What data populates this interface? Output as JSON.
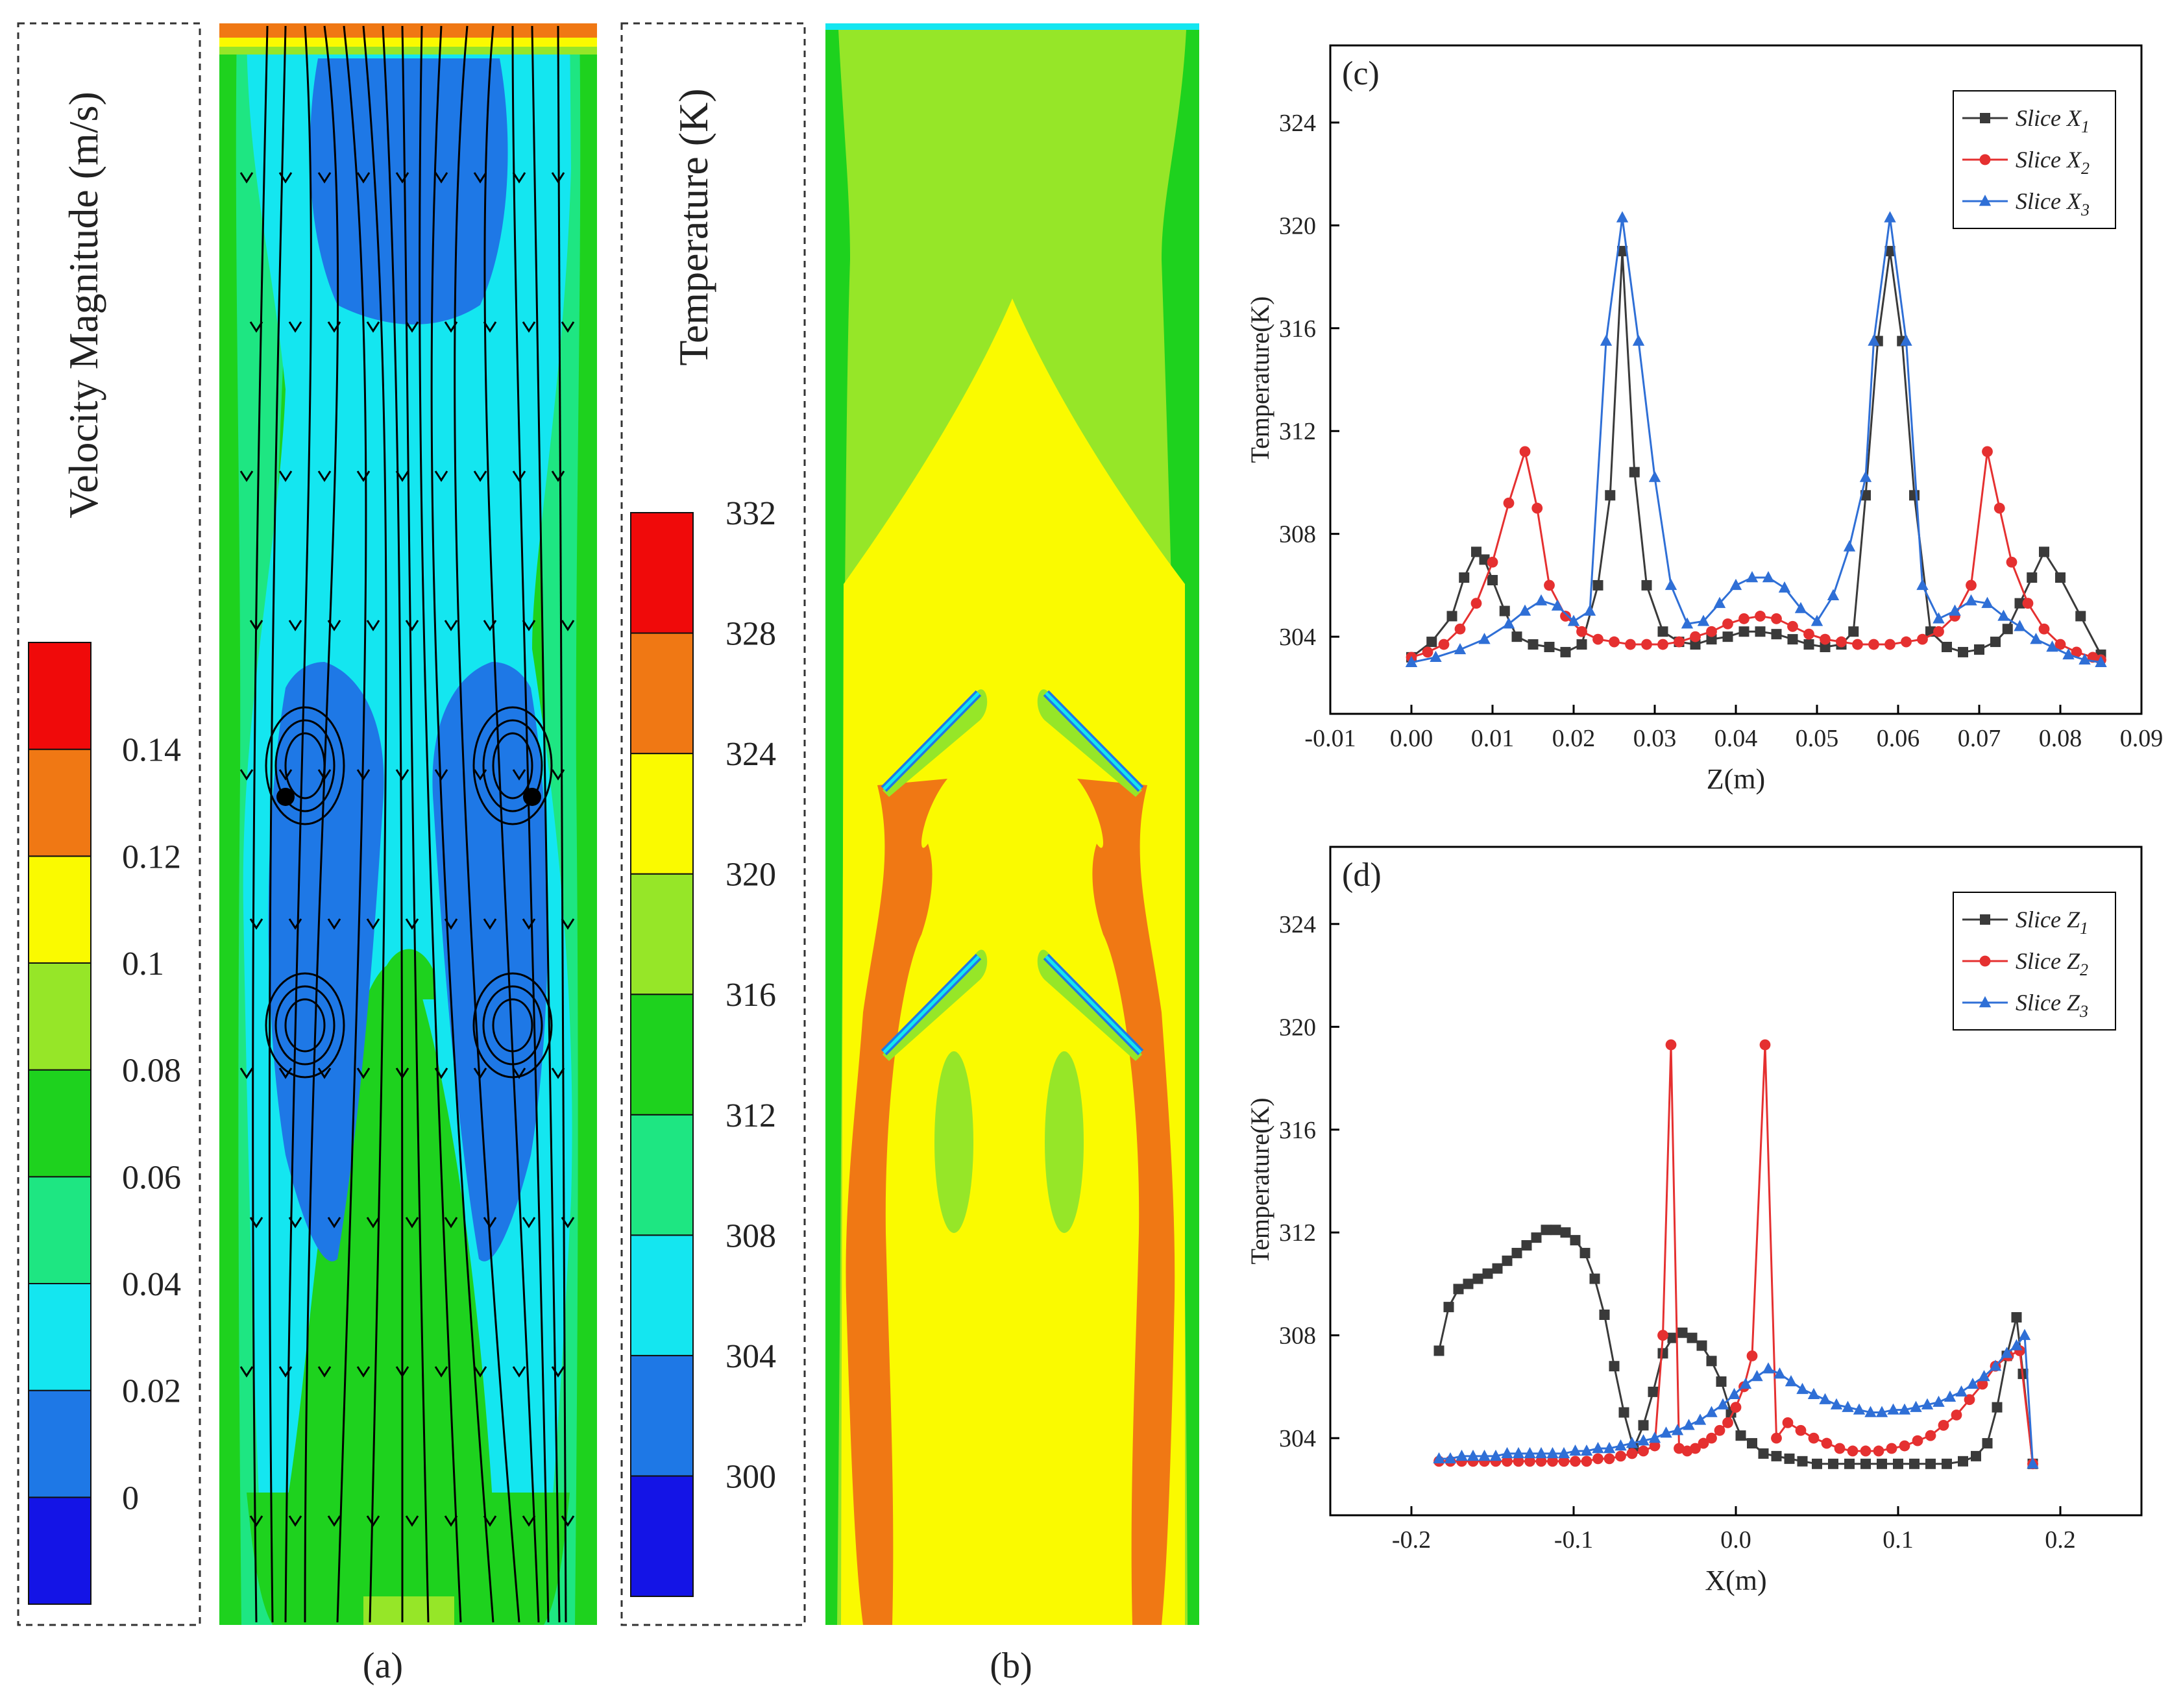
{
  "panel_a": {
    "caption": "(a)",
    "legend_title": "Velocity Magnitude (m/s)",
    "legend_labels": [
      "0",
      "0.02",
      "0.04",
      "0.06",
      "0.08",
      "0.1",
      "0.12",
      "0.14"
    ],
    "legend_colors": [
      "#1414e6",
      "#1e78e6",
      "#14e6f0",
      "#1ee682",
      "#1ed21e",
      "#96e628",
      "#fafa00",
      "#f07814",
      "#f00a0a"
    ]
  },
  "panel_b": {
    "caption": "(b)",
    "legend_title": "Temperature (K)",
    "legend_labels": [
      "300",
      "304",
      "308",
      "312",
      "316",
      "320",
      "324",
      "328",
      "332"
    ],
    "legend_colors": [
      "#1414e6",
      "#1e78e6",
      "#14e6f0",
      "#1ee682",
      "#1ed21e",
      "#96e628",
      "#fafa00",
      "#f07814",
      "#f00a0a"
    ]
  },
  "chart_data": [
    {
      "type": "line",
      "panel_label": "(c)",
      "xlabel": "Z(m)",
      "ylabel": "Temperature(K)",
      "xlim": [
        -0.01,
        0.09
      ],
      "ylim": [
        301,
        327
      ],
      "xticks": [
        "-0.01",
        "0.00",
        "0.01",
        "0.02",
        "0.03",
        "0.04",
        "0.05",
        "0.06",
        "0.07",
        "0.08",
        "0.09"
      ],
      "yticks": [
        "304",
        "308",
        "312",
        "316",
        "320",
        "324"
      ],
      "legend_position": "top-right",
      "series": [
        {
          "name": "Slice X",
          "sub": "1",
          "color": "#3a3a3a",
          "marker": "square",
          "x": [
            0.0,
            0.0025,
            0.005,
            0.0065,
            0.008,
            0.009,
            0.01,
            0.0115,
            0.013,
            0.015,
            0.017,
            0.019,
            0.021,
            0.023,
            0.0245,
            0.026,
            0.0275,
            0.029,
            0.031,
            0.033,
            0.035,
            0.037,
            0.039,
            0.041,
            0.043,
            0.045,
            0.047,
            0.049,
            0.051,
            0.053,
            0.0545,
            0.056,
            0.0575,
            0.059,
            0.0605,
            0.062,
            0.064,
            0.066,
            0.068,
            0.07,
            0.072,
            0.0735,
            0.075,
            0.0765,
            0.078,
            0.08,
            0.0825,
            0.085
          ],
          "y": [
            303.2,
            303.8,
            304.8,
            306.3,
            307.3,
            307.0,
            306.2,
            305.0,
            304.0,
            303.7,
            303.6,
            303.4,
            303.7,
            306.0,
            309.5,
            319.0,
            310.4,
            306.0,
            304.2,
            303.8,
            303.7,
            303.9,
            304.0,
            304.2,
            304.2,
            304.1,
            303.9,
            303.7,
            303.6,
            303.7,
            304.2,
            309.5,
            315.5,
            319.0,
            315.5,
            309.5,
            304.2,
            303.6,
            303.4,
            303.5,
            303.8,
            304.3,
            305.3,
            306.3,
            307.3,
            306.3,
            304.8,
            303.3
          ]
        },
        {
          "name": "Slice X",
          "sub": "2",
          "color": "#e53030",
          "marker": "circle",
          "x": [
            0.0,
            0.002,
            0.004,
            0.006,
            0.008,
            0.01,
            0.012,
            0.014,
            0.0155,
            0.017,
            0.019,
            0.021,
            0.023,
            0.025,
            0.027,
            0.029,
            0.031,
            0.033,
            0.035,
            0.037,
            0.039,
            0.041,
            0.043,
            0.045,
            0.047,
            0.049,
            0.051,
            0.053,
            0.055,
            0.057,
            0.059,
            0.061,
            0.063,
            0.065,
            0.067,
            0.069,
            0.071,
            0.0725,
            0.074,
            0.076,
            0.078,
            0.08,
            0.082,
            0.084,
            0.085
          ],
          "y": [
            303.2,
            303.4,
            303.7,
            304.3,
            305.3,
            306.9,
            309.2,
            311.2,
            309.0,
            306.0,
            304.8,
            304.2,
            303.9,
            303.8,
            303.7,
            303.7,
            303.7,
            303.8,
            304.0,
            304.2,
            304.5,
            304.7,
            304.8,
            304.7,
            304.4,
            304.1,
            303.9,
            303.8,
            303.7,
            303.7,
            303.7,
            303.8,
            303.9,
            304.2,
            304.8,
            306.0,
            311.2,
            309.0,
            306.9,
            305.3,
            304.3,
            303.7,
            303.4,
            303.2,
            303.1
          ]
        },
        {
          "name": "Slice X",
          "sub": "3",
          "color": "#2f6fd6",
          "marker": "triangle",
          "x": [
            0.0,
            0.003,
            0.006,
            0.009,
            0.012,
            0.014,
            0.016,
            0.018,
            0.02,
            0.022,
            0.024,
            0.026,
            0.028,
            0.03,
            0.032,
            0.034,
            0.036,
            0.038,
            0.04,
            0.042,
            0.044,
            0.046,
            0.048,
            0.05,
            0.052,
            0.054,
            0.056,
            0.057,
            0.059,
            0.061,
            0.063,
            0.065,
            0.067,
            0.069,
            0.071,
            0.073,
            0.075,
            0.077,
            0.079,
            0.081,
            0.083,
            0.085
          ],
          "y": [
            303.0,
            303.2,
            303.5,
            303.9,
            304.5,
            305.0,
            305.4,
            305.2,
            304.6,
            305.0,
            315.5,
            320.3,
            315.5,
            310.2,
            306.0,
            304.5,
            304.6,
            305.3,
            306.0,
            306.3,
            306.3,
            305.9,
            305.1,
            304.6,
            305.6,
            307.5,
            310.2,
            315.5,
            320.3,
            315.5,
            306.0,
            304.7,
            305.0,
            305.4,
            305.3,
            304.8,
            304.4,
            303.9,
            303.6,
            303.3,
            303.1,
            303.0
          ]
        }
      ]
    },
    {
      "type": "line",
      "panel_label": "(d)",
      "xlabel": "X(m)",
      "ylabel": "Temperature(K)",
      "xlim": [
        -0.25,
        0.25
      ],
      "ylim": [
        301,
        327
      ],
      "xticks": [
        "-0.2",
        "-0.1",
        "0.0",
        "0.1",
        "0.2"
      ],
      "yticks": [
        "304",
        "308",
        "312",
        "316",
        "320",
        "324"
      ],
      "legend_position": "top-right",
      "series": [
        {
          "name": "Slice Z",
          "sub": "1",
          "color": "#3a3a3a",
          "marker": "square",
          "x": [
            -0.183,
            -0.177,
            -0.171,
            -0.165,
            -0.159,
            -0.153,
            -0.147,
            -0.141,
            -0.135,
            -0.129,
            -0.123,
            -0.117,
            -0.111,
            -0.105,
            -0.099,
            -0.093,
            -0.087,
            -0.081,
            -0.075,
            -0.069,
            -0.063,
            -0.057,
            -0.051,
            -0.045,
            -0.039,
            -0.033,
            -0.027,
            -0.021,
            -0.015,
            -0.009,
            -0.003,
            0.003,
            0.01,
            0.017,
            0.025,
            0.033,
            0.041,
            0.05,
            0.06,
            0.07,
            0.08,
            0.09,
            0.1,
            0.11,
            0.12,
            0.13,
            0.14,
            0.148,
            0.155,
            0.161,
            0.167,
            0.173,
            0.177,
            0.183
          ],
          "y": [
            307.4,
            309.1,
            309.8,
            310.0,
            310.2,
            310.4,
            310.6,
            310.9,
            311.2,
            311.5,
            311.8,
            312.1,
            312.1,
            312.0,
            311.7,
            311.2,
            310.2,
            308.8,
            306.8,
            305.0,
            303.6,
            304.5,
            305.8,
            307.3,
            307.9,
            308.1,
            307.9,
            307.6,
            307.0,
            306.2,
            305.0,
            304.1,
            303.8,
            303.4,
            303.3,
            303.2,
            303.1,
            303.0,
            303.0,
            303.0,
            303.0,
            303.0,
            303.0,
            303.0,
            303.0,
            303.0,
            303.1,
            303.3,
            303.8,
            305.2,
            307.2,
            308.7,
            306.5,
            303.0
          ]
        },
        {
          "name": "Slice Z",
          "sub": "2",
          "color": "#e53030",
          "marker": "circle",
          "x": [
            -0.183,
            -0.176,
            -0.169,
            -0.162,
            -0.155,
            -0.148,
            -0.141,
            -0.134,
            -0.127,
            -0.12,
            -0.113,
            -0.106,
            -0.099,
            -0.092,
            -0.085,
            -0.078,
            -0.071,
            -0.064,
            -0.057,
            -0.05,
            -0.045,
            -0.04,
            -0.035,
            -0.03,
            -0.025,
            -0.02,
            -0.015,
            -0.01,
            -0.005,
            0.0,
            0.005,
            0.01,
            0.018,
            0.025,
            0.032,
            0.04,
            0.048,
            0.056,
            0.064,
            0.072,
            0.08,
            0.088,
            0.096,
            0.104,
            0.112,
            0.12,
            0.128,
            0.136,
            0.144,
            0.152,
            0.16,
            0.168,
            0.175,
            0.183
          ],
          "y": [
            303.1,
            303.1,
            303.1,
            303.1,
            303.1,
            303.1,
            303.1,
            303.1,
            303.1,
            303.1,
            303.1,
            303.1,
            303.1,
            303.1,
            303.2,
            303.2,
            303.3,
            303.4,
            303.5,
            303.7,
            308.0,
            319.3,
            303.6,
            303.5,
            303.6,
            303.8,
            304.0,
            304.3,
            304.6,
            305.2,
            306.0,
            307.2,
            319.3,
            304.0,
            304.6,
            304.3,
            304.0,
            303.8,
            303.6,
            303.5,
            303.5,
            303.5,
            303.6,
            303.7,
            303.9,
            304.1,
            304.5,
            304.9,
            305.5,
            306.1,
            306.8,
            307.2,
            307.4,
            303.0
          ]
        },
        {
          "name": "Slice Z",
          "sub": "3",
          "color": "#2f6fd6",
          "marker": "triangle",
          "x": [
            -0.183,
            -0.176,
            -0.169,
            -0.162,
            -0.155,
            -0.148,
            -0.141,
            -0.134,
            -0.127,
            -0.12,
            -0.113,
            -0.106,
            -0.099,
            -0.092,
            -0.085,
            -0.078,
            -0.071,
            -0.064,
            -0.057,
            -0.05,
            -0.043,
            -0.036,
            -0.029,
            -0.022,
            -0.015,
            -0.008,
            -0.001,
            0.006,
            0.013,
            0.02,
            0.027,
            0.034,
            0.041,
            0.048,
            0.055,
            0.062,
            0.069,
            0.076,
            0.083,
            0.09,
            0.097,
            0.104,
            0.111,
            0.118,
            0.125,
            0.132,
            0.139,
            0.146,
            0.153,
            0.16,
            0.167,
            0.173,
            0.178,
            0.183
          ],
          "y": [
            303.2,
            303.2,
            303.3,
            303.3,
            303.3,
            303.3,
            303.4,
            303.4,
            303.4,
            303.4,
            303.4,
            303.4,
            303.5,
            303.5,
            303.6,
            303.6,
            303.7,
            303.8,
            303.9,
            304.0,
            304.2,
            304.3,
            304.5,
            304.7,
            305.0,
            305.3,
            305.7,
            306.1,
            306.4,
            306.7,
            306.5,
            306.2,
            305.9,
            305.7,
            305.5,
            305.3,
            305.2,
            305.1,
            305.0,
            305.0,
            305.1,
            305.1,
            305.2,
            305.3,
            305.4,
            305.6,
            305.8,
            306.1,
            306.4,
            306.8,
            307.3,
            307.6,
            308.0,
            303.0
          ]
        }
      ]
    }
  ]
}
